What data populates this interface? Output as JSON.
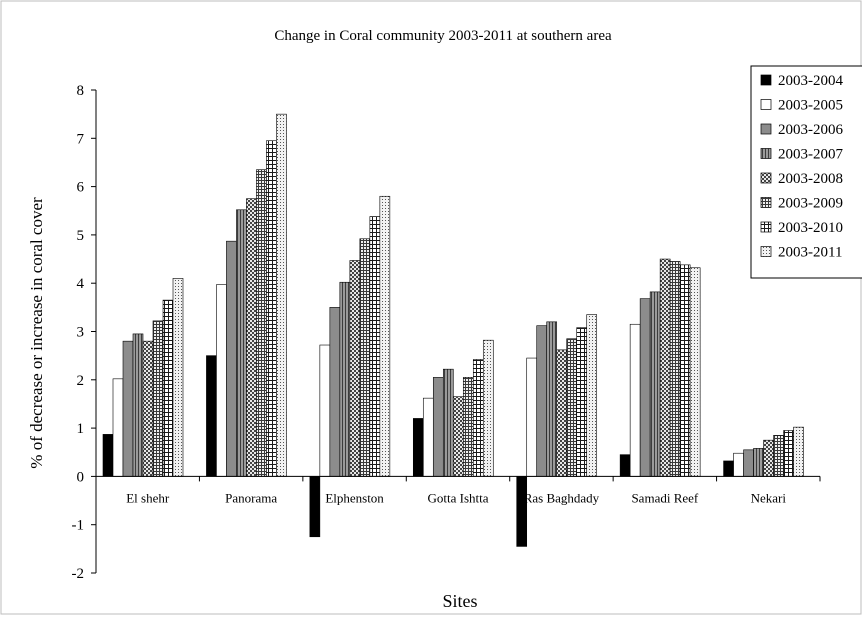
{
  "chart_data": {
    "type": "bar",
    "title": "Change in Coral community 2003-2011 at southern area",
    "xlabel": "Sites",
    "ylabel": "% of decrease or increase in coral cover",
    "ylim": [
      -2,
      8
    ],
    "yticks": [
      "-2",
      "-1",
      "0",
      "1",
      "2",
      "3",
      "4",
      "5",
      "6",
      "7",
      "8"
    ],
    "grid": false,
    "legend_position": "top-right",
    "categories": [
      "El shehr",
      "Panorama",
      "Elphenston",
      "Gotta Ishtta",
      "Ras Baghdady",
      "Samadi Reef",
      "Nekari"
    ],
    "series": [
      {
        "name": "2003-2004",
        "pattern": "solid-black",
        "values": [
          0.87,
          2.5,
          -1.25,
          1.2,
          -1.45,
          0.45,
          0.32
        ]
      },
      {
        "name": "2003-2005",
        "pattern": "white",
        "values": [
          2.02,
          3.97,
          2.72,
          1.62,
          2.45,
          3.15,
          0.48
        ]
      },
      {
        "name": "2003-2006",
        "pattern": "solid-gray",
        "values": [
          2.8,
          4.87,
          3.5,
          2.05,
          3.12,
          3.68,
          0.55
        ]
      },
      {
        "name": "2003-2007",
        "pattern": "vertical-stripes",
        "values": [
          2.95,
          5.52,
          4.02,
          2.22,
          3.2,
          3.82,
          0.58
        ]
      },
      {
        "name": "2003-2008",
        "pattern": "checker",
        "values": [
          2.8,
          5.75,
          4.47,
          1.65,
          2.62,
          4.5,
          0.75
        ]
      },
      {
        "name": "2003-2009",
        "pattern": "dense-grid",
        "values": [
          3.22,
          6.35,
          4.92,
          2.05,
          2.85,
          4.45,
          0.85
        ]
      },
      {
        "name": "2003-2010",
        "pattern": "open-grid",
        "values": [
          3.65,
          6.95,
          5.38,
          2.42,
          3.08,
          4.38,
          0.95
        ]
      },
      {
        "name": "2003-2011",
        "pattern": "dots",
        "values": [
          4.1,
          7.5,
          5.8,
          2.82,
          3.35,
          4.32,
          1.02
        ]
      }
    ]
  }
}
